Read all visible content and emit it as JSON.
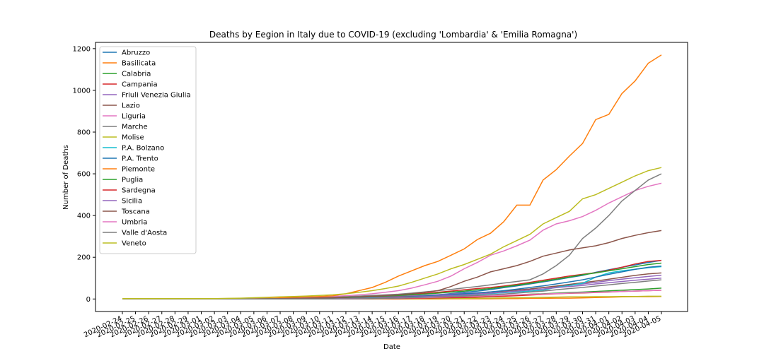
{
  "chart_data": {
    "type": "line",
    "title": "Deaths by Eegion in Italy due to COVID-19 (excluding 'Lombardia' & 'Emilia Romagna')",
    "xlabel": "Date",
    "ylabel": "Number of Deaths",
    "ylim": [
      -60,
      1230
    ],
    "yticks": [
      0,
      200,
      400,
      600,
      800,
      1000,
      1200
    ],
    "grid": false,
    "legend_position": "upper-left",
    "x": [
      "2020-02-24",
      "2020-02-25",
      "2020-02-26",
      "2020-02-27",
      "2020-02-28",
      "2020-02-29",
      "2020-03-01",
      "2020-03-02",
      "2020-03-03",
      "2020-03-04",
      "2020-03-05",
      "2020-03-06",
      "2020-03-07",
      "2020-03-08",
      "2020-03-09",
      "2020-03-10",
      "2020-03-11",
      "2020-03-12",
      "2020-03-13",
      "2020-03-14",
      "2020-03-15",
      "2020-03-16",
      "2020-03-17",
      "2020-03-18",
      "2020-03-19",
      "2020-03-20",
      "2020-03-21",
      "2020-03-22",
      "2020-03-23",
      "2020-03-24",
      "2020-03-25",
      "2020-03-26",
      "2020-03-27",
      "2020-03-28",
      "2020-03-29",
      "2020-03-30",
      "2020-03-31",
      "2020-04-01",
      "2020-04-02",
      "2020-04-03",
      "2020-04-04",
      "2020-04-05"
    ],
    "series": [
      {
        "name": "Abruzzo",
        "color": "#1f77b4",
        "values": [
          0,
          0,
          0,
          0,
          0,
          0,
          0,
          0,
          0,
          0,
          0,
          0,
          0,
          0,
          0,
          1,
          2,
          3,
          4,
          6,
          8,
          10,
          13,
          16,
          20,
          26,
          32,
          38,
          45,
          54,
          63,
          72,
          82,
          92,
          103,
          113,
          128,
          140,
          152,
          163,
          175,
          185
        ]
      },
      {
        "name": "Basilicata",
        "color": "#ff7f0e",
        "values": [
          0,
          0,
          0,
          0,
          0,
          0,
          0,
          0,
          0,
          0,
          0,
          0,
          0,
          0,
          0,
          0,
          0,
          0,
          0,
          0,
          0,
          0,
          0,
          0,
          0,
          1,
          1,
          1,
          1,
          2,
          2,
          3,
          3,
          4,
          4,
          5,
          7,
          8,
          10,
          11,
          11,
          12
        ]
      },
      {
        "name": "Calabria",
        "color": "#2ca02c",
        "values": [
          0,
          0,
          0,
          0,
          0,
          0,
          0,
          0,
          0,
          0,
          0,
          0,
          0,
          0,
          0,
          0,
          1,
          1,
          2,
          3,
          4,
          5,
          6,
          7,
          8,
          10,
          12,
          14,
          16,
          18,
          20,
          23,
          25,
          28,
          31,
          33,
          36,
          39,
          42,
          45,
          48,
          52
        ]
      },
      {
        "name": "Campania",
        "color": "#d62728",
        "values": [
          0,
          0,
          0,
          0,
          0,
          0,
          0,
          0,
          0,
          0,
          1,
          1,
          2,
          3,
          4,
          5,
          6,
          8,
          10,
          12,
          15,
          18,
          22,
          27,
          32,
          38,
          44,
          50,
          55,
          62,
          70,
          80,
          90,
          100,
          110,
          118,
          126,
          138,
          152,
          168,
          180,
          185
        ]
      },
      {
        "name": "Friuli Venezia Giulia",
        "color": "#9467bd",
        "values": [
          0,
          0,
          0,
          0,
          0,
          0,
          0,
          0,
          0,
          0,
          0,
          0,
          1,
          2,
          3,
          4,
          5,
          6,
          7,
          9,
          11,
          13,
          15,
          18,
          21,
          24,
          27,
          30,
          34,
          38,
          43,
          48,
          54,
          60,
          66,
          72,
          80,
          88,
          95,
          102,
          108,
          114
        ]
      },
      {
        "name": "Lazio",
        "color": "#8c564b",
        "values": [
          0,
          0,
          0,
          0,
          0,
          0,
          0,
          0,
          0,
          0,
          0,
          0,
          1,
          1,
          2,
          3,
          4,
          5,
          6,
          7,
          8,
          10,
          12,
          14,
          17,
          20,
          24,
          28,
          33,
          38,
          43,
          48,
          55,
          62,
          70,
          78,
          86,
          95,
          104,
          113,
          120,
          125
        ]
      },
      {
        "name": "Liguria",
        "color": "#e377c2",
        "values": [
          0,
          0,
          0,
          0,
          0,
          0,
          0,
          0,
          1,
          1,
          2,
          3,
          4,
          5,
          7,
          9,
          12,
          16,
          20,
          25,
          32,
          40,
          52,
          68,
          85,
          110,
          145,
          175,
          210,
          230,
          255,
          282,
          330,
          360,
          375,
          395,
          425,
          460,
          490,
          520,
          540,
          555
        ]
      },
      {
        "name": "Marche",
        "color": "#7f7f7f",
        "values": [
          0,
          0,
          0,
          0,
          0,
          0,
          0,
          0,
          0,
          0,
          1,
          1,
          2,
          3,
          4,
          6,
          8,
          11,
          14,
          17,
          20,
          23,
          28,
          34,
          40,
          46,
          53,
          60,
          68,
          76,
          84,
          92,
          120,
          160,
          210,
          290,
          340,
          400,
          470,
          520,
          570,
          600
        ]
      },
      {
        "name": "Molise",
        "color": "#bcbd22",
        "values": [
          0,
          0,
          0,
          0,
          0,
          0,
          0,
          0,
          0,
          0,
          0,
          0,
          0,
          0,
          0,
          0,
          0,
          0,
          0,
          0,
          1,
          1,
          1,
          2,
          2,
          3,
          3,
          4,
          4,
          5,
          6,
          7,
          8,
          9,
          10,
          10,
          11,
          11,
          12,
          12,
          13,
          13
        ]
      },
      {
        "name": "P.A. Bolzano",
        "color": "#17becf",
        "values": [
          0,
          0,
          0,
          0,
          0,
          0,
          0,
          0,
          0,
          0,
          0,
          0,
          0,
          0,
          1,
          1,
          2,
          3,
          4,
          5,
          6,
          7,
          8,
          10,
          12,
          15,
          18,
          22,
          26,
          30,
          34,
          38,
          42,
          56,
          65,
          75,
          105,
          125,
          135,
          142,
          150,
          155
        ]
      },
      {
        "name": "P.A. Trento",
        "color": "#1f77b4",
        "values": [
          0,
          0,
          0,
          0,
          0,
          0,
          0,
          0,
          0,
          0,
          0,
          0,
          0,
          0,
          0,
          0,
          1,
          1,
          2,
          3,
          5,
          8,
          11,
          14,
          17,
          21,
          25,
          29,
          34,
          40,
          47,
          55,
          63,
          72,
          82,
          92,
          105,
          118,
          130,
          142,
          152,
          158
        ]
      },
      {
        "name": "Piemonte",
        "color": "#ff7f0e",
        "values": [
          0,
          0,
          0,
          0,
          0,
          0,
          0,
          0,
          0,
          0,
          2,
          3,
          5,
          8,
          10,
          12,
          15,
          25,
          40,
          55,
          80,
          110,
          135,
          160,
          180,
          210,
          240,
          285,
          315,
          370,
          450,
          450,
          570,
          620,
          685,
          745,
          860,
          885,
          985,
          1045,
          1130,
          1170
        ]
      },
      {
        "name": "Puglia",
        "color": "#2ca02c",
        "values": [
          0,
          0,
          0,
          0,
          0,
          0,
          0,
          0,
          0,
          0,
          0,
          1,
          1,
          2,
          3,
          4,
          5,
          7,
          9,
          11,
          14,
          17,
          20,
          24,
          28,
          33,
          38,
          44,
          50,
          58,
          66,
          75,
          85,
          95,
          105,
          116,
          125,
          135,
          145,
          155,
          165,
          172
        ]
      },
      {
        "name": "Sardegna",
        "color": "#d62728",
        "values": [
          0,
          0,
          0,
          0,
          0,
          0,
          0,
          0,
          0,
          0,
          0,
          0,
          0,
          0,
          0,
          0,
          0,
          1,
          1,
          1,
          2,
          2,
          3,
          4,
          5,
          6,
          7,
          9,
          11,
          13,
          16,
          19,
          22,
          25,
          27,
          29,
          31,
          33,
          36,
          38,
          40,
          42
        ]
      },
      {
        "name": "Sicilia",
        "color": "#9467bd",
        "values": [
          0,
          0,
          0,
          0,
          0,
          0,
          0,
          0,
          0,
          0,
          0,
          0,
          0,
          0,
          0,
          1,
          1,
          2,
          3,
          4,
          5,
          7,
          9,
          11,
          14,
          17,
          20,
          24,
          28,
          33,
          38,
          43,
          48,
          54,
          60,
          65,
          72,
          78,
          84,
          90,
          95,
          100
        ]
      },
      {
        "name": "Toscana",
        "color": "#8c564b",
        "values": [
          0,
          0,
          0,
          0,
          0,
          0,
          0,
          0,
          0,
          0,
          0,
          1,
          2,
          3,
          4,
          5,
          6,
          8,
          10,
          13,
          16,
          20,
          25,
          32,
          40,
          60,
          85,
          105,
          130,
          145,
          160,
          180,
          205,
          220,
          235,
          245,
          255,
          270,
          290,
          305,
          318,
          328
        ]
      },
      {
        "name": "Umbria",
        "color": "#e377c2",
        "values": [
          0,
          0,
          0,
          0,
          0,
          0,
          0,
          0,
          0,
          0,
          0,
          0,
          0,
          0,
          0,
          0,
          0,
          1,
          1,
          2,
          3,
          4,
          5,
          6,
          8,
          10,
          12,
          14,
          16,
          18,
          20,
          22,
          24,
          26,
          28,
          30,
          32,
          34,
          36,
          38,
          40,
          42
        ]
      },
      {
        "name": "Valle d'Aosta",
        "color": "#7f7f7f",
        "values": [
          0,
          0,
          0,
          0,
          0,
          0,
          0,
          0,
          0,
          0,
          0,
          0,
          0,
          0,
          0,
          0,
          0,
          1,
          1,
          2,
          3,
          4,
          6,
          8,
          10,
          12,
          14,
          17,
          20,
          24,
          28,
          33,
          38,
          44,
          50,
          55,
          62,
          68,
          74,
          80,
          86,
          92
        ]
      },
      {
        "name": "Veneto",
        "color": "#bcbd22",
        "values": [
          2,
          2,
          2,
          2,
          2,
          2,
          2,
          2,
          3,
          4,
          6,
          8,
          10,
          12,
          14,
          17,
          20,
          25,
          32,
          40,
          50,
          62,
          80,
          100,
          120,
          145,
          165,
          190,
          215,
          250,
          280,
          310,
          360,
          390,
          420,
          480,
          500,
          530,
          560,
          590,
          615,
          630
        ]
      }
    ]
  }
}
